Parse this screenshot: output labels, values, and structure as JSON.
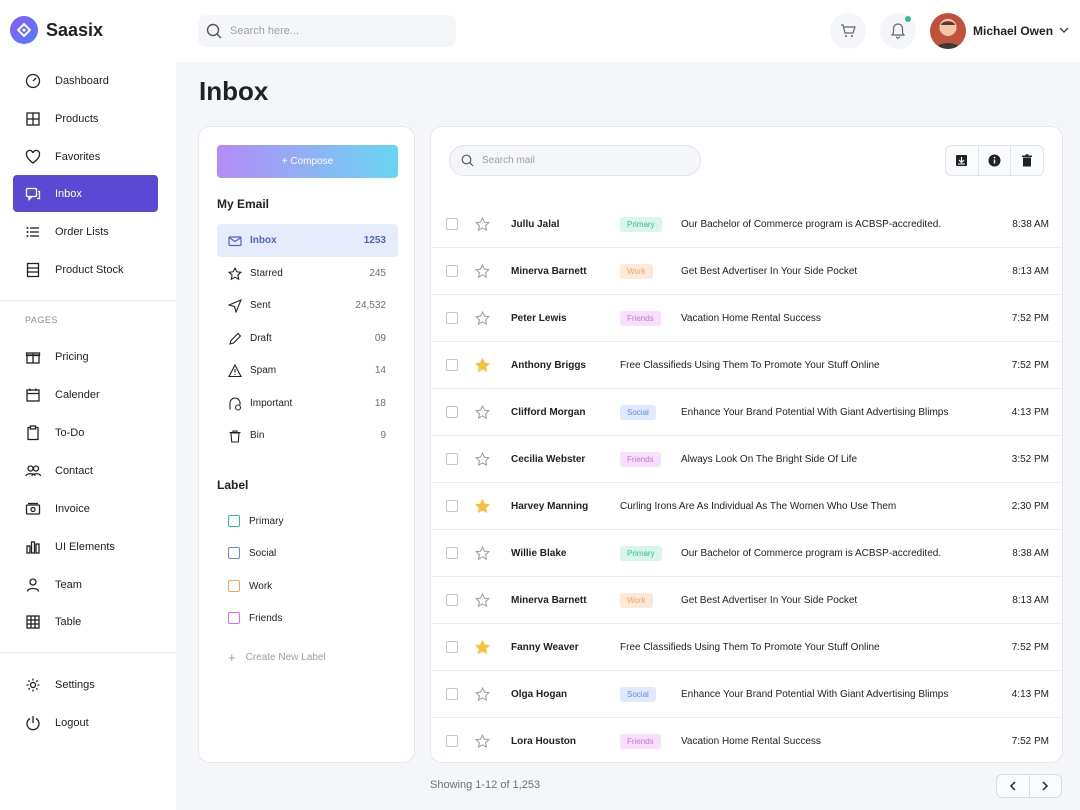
{
  "app": {
    "name": "Saasix"
  },
  "header": {
    "search_placeholder": "Search here...",
    "user_name": "Michael Owen"
  },
  "sidebar": {
    "items": [
      {
        "label": "Dashboard",
        "icon": "dashboard-icon"
      },
      {
        "label": "Products",
        "icon": "grid-icon"
      },
      {
        "label": "Favorites",
        "icon": "heart-icon"
      },
      {
        "label": "Inbox",
        "icon": "chat-icon",
        "active": true
      },
      {
        "label": "Order Lists",
        "icon": "list-icon"
      },
      {
        "label": "Product Stock",
        "icon": "stock-icon"
      }
    ],
    "pages_heading": "PAGES",
    "pages": [
      {
        "label": "Pricing",
        "icon": "gift-icon"
      },
      {
        "label": "Calender",
        "icon": "calendar-icon"
      },
      {
        "label": "To-Do",
        "icon": "clipboard-icon"
      },
      {
        "label": "Contact",
        "icon": "users-icon"
      },
      {
        "label": "Invoice",
        "icon": "invoice-icon"
      },
      {
        "label": "UI Elements",
        "icon": "chart-icon"
      },
      {
        "label": "Team",
        "icon": "user-icon"
      },
      {
        "label": "Table",
        "icon": "table-icon"
      }
    ],
    "bottom": [
      {
        "label": "Settings",
        "icon": "gear-icon"
      },
      {
        "label": "Logout",
        "icon": "power-icon"
      }
    ]
  },
  "page": {
    "title": "Inbox"
  },
  "mail_panel": {
    "compose_label": "+ Compose",
    "my_email_title": "My Email",
    "folders": [
      {
        "label": "Inbox",
        "count": "1253",
        "active": true
      },
      {
        "label": "Starred",
        "count": "245"
      },
      {
        "label": "Sent",
        "count": "24,532"
      },
      {
        "label": "Draft",
        "count": "09"
      },
      {
        "label": "Spam",
        "count": "14"
      },
      {
        "label": "Important",
        "count": "18"
      },
      {
        "label": "Bin",
        "count": "9"
      }
    ],
    "label_title": "Label",
    "labels": [
      {
        "label": "Primary",
        "color": "#2bbf9a"
      },
      {
        "label": "Social",
        "color": "#5b8def"
      },
      {
        "label": "Work",
        "color": "#f2a65a"
      },
      {
        "label": "Friends",
        "color": "#d36ce6"
      }
    ],
    "create_label": "Create New Label"
  },
  "mail_list": {
    "search_placeholder": "Search mail",
    "rows": [
      {
        "sender": "Jullu Jalal",
        "tag": "Primary",
        "subject": "Our Bachelor of Commerce program is ACBSP-accredited.",
        "time": "8:38 AM",
        "starred": false
      },
      {
        "sender": "Minerva Barnett",
        "tag": "Work",
        "subject": "Get Best Advertiser In Your Side Pocket",
        "time": "8:13 AM",
        "starred": false
      },
      {
        "sender": "Peter Lewis",
        "tag": "Friends",
        "subject": "Vacation Home Rental Success",
        "time": "7:52 PM",
        "starred": false
      },
      {
        "sender": "Anthony Briggs",
        "tag": "",
        "subject": "Free Classifieds Using Them To Promote Your Stuff Online",
        "time": "7:52 PM",
        "starred": true
      },
      {
        "sender": "Clifford Morgan",
        "tag": "Social",
        "subject": "Enhance Your Brand Potential With Giant Advertising Blimps",
        "time": "4:13 PM",
        "starred": false
      },
      {
        "sender": "Cecilia Webster",
        "tag": "Friends",
        "subject": "Always Look On The Bright Side Of Life",
        "time": "3:52 PM",
        "starred": false
      },
      {
        "sender": "Harvey Manning",
        "tag": "",
        "subject": "Curling Irons Are As Individual As The Women Who Use Them",
        "time": "2:30 PM",
        "starred": true
      },
      {
        "sender": "Willie Blake",
        "tag": "Primary",
        "subject": "Our Bachelor of Commerce program is ACBSP-accredited.",
        "time": "8:38 AM",
        "starred": false
      },
      {
        "sender": "Minerva Barnett",
        "tag": "Work",
        "subject": "Get Best Advertiser In Your Side Pocket",
        "time": "8:13 AM",
        "starred": false
      },
      {
        "sender": "Fanny Weaver",
        "tag": "",
        "subject": "Free Classifieds Using Them To Promote Your Stuff Online",
        "time": "7:52 PM",
        "starred": true
      },
      {
        "sender": "Olga Hogan",
        "tag": "Social",
        "subject": "Enhance Your Brand Potential With Giant Advertising Blimps",
        "time": "4:13 PM",
        "starred": false
      },
      {
        "sender": "Lora Houston",
        "tag": "Friends",
        "subject": "Vacation Home Rental Success",
        "time": "7:52 PM",
        "starred": false
      }
    ],
    "footer": "Showing 1-12 of 1,253"
  },
  "colors": {
    "accent": "#5b49d6",
    "star_active": "#f7c23b",
    "tag_primary_bg": "#d9f5ec",
    "tag_primary_fg": "#2bbf9a",
    "tag_work_bg": "#fde9d8",
    "tag_work_fg": "#f2a65a",
    "tag_friends_bg": "#f7e0fb",
    "tag_friends_fg": "#d36ce6",
    "tag_social_bg": "#e0e9fd",
    "tag_social_fg": "#5b8def"
  }
}
